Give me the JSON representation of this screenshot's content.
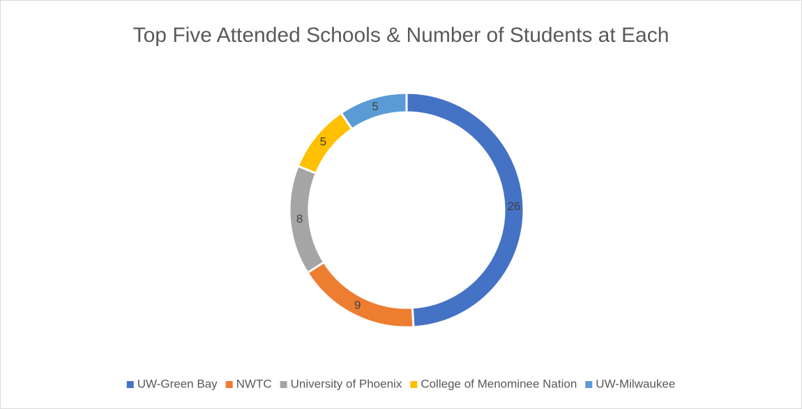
{
  "chart_data": {
    "type": "donut",
    "title": "Top Five Attended Schools & Number of Students at Each",
    "categories": [
      "UW-Green Bay",
      "NWTC",
      "University of Phoenix",
      "College of Menominee Nation",
      "UW-Milwaukee"
    ],
    "values": [
      26,
      9,
      8,
      5,
      5
    ],
    "colors": [
      "#4472c4",
      "#ed7d31",
      "#a5a5a5",
      "#ffc000",
      "#5b9bd5"
    ],
    "legend": "bottom"
  }
}
